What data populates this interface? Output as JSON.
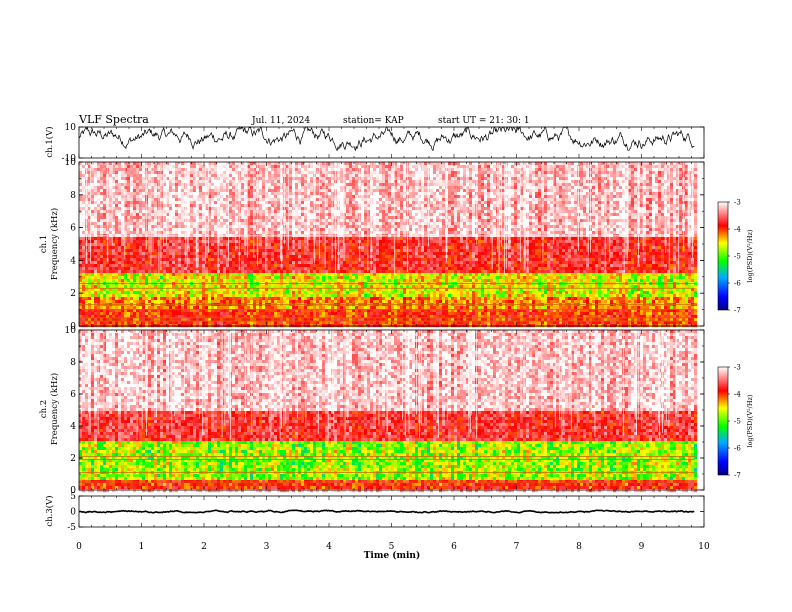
{
  "header": {
    "title": "VLF Spectra",
    "date": "Jul. 11, 2024",
    "station": "station= KAP",
    "start": "start UT = 21: 30: 1"
  },
  "colors": {
    "spectrogram_low": "#0000ff",
    "spectrogram_mid": "#00ff00",
    "spectrogram_high": "#ff0000",
    "background_noise": "#ffffff",
    "trace": "#000000"
  },
  "chart_data": [
    {
      "id": "ch1-waveform",
      "type": "line",
      "ylabel": "ch.1(V)",
      "ylim": [
        -10,
        10
      ],
      "yticks": [
        "10",
        "-10"
      ],
      "xlim": [
        0,
        9.85
      ],
      "series": [
        {
          "values_range": [
            -5,
            10
          ],
          "mean_level": 3.5
        }
      ]
    },
    {
      "id": "ch1-spectrogram",
      "type": "heatmap",
      "ylabel": "ch.1\nFrequency (kHz)",
      "ylim": [
        0,
        10
      ],
      "yticks": [
        "0",
        "2",
        "4",
        "6",
        "8",
        "10"
      ],
      "xlim": [
        0,
        9.85
      ],
      "bands": [
        {
          "fmin": 0.0,
          "fmax": 1.0,
          "level": -4.3
        },
        {
          "fmin": 1.0,
          "fmax": 1.8,
          "level": -4.6
        },
        {
          "fmin": 1.8,
          "fmax": 3.2,
          "level": -5.0
        },
        {
          "fmin": 3.2,
          "fmax": 5.5,
          "level": -4.0
        },
        {
          "fmin": 5.5,
          "fmax": 10.0,
          "level": -3.3
        }
      ],
      "narrowband_lines_khz": [
        0.3,
        0.5,
        1.0,
        1.3,
        2.3,
        2.6,
        5.5
      ],
      "colorbar": {
        "label": "log(PSD)(V²/Hz)",
        "range": [
          -7,
          -3
        ],
        "ticks": [
          "-3",
          "-4",
          "-5",
          "-6",
          "-7"
        ]
      }
    },
    {
      "id": "ch2-spectrogram",
      "type": "heatmap",
      "ylabel": "ch.2\nFrequency (kHz)",
      "ylim": [
        0,
        10
      ],
      "yticks": [
        "0",
        "2",
        "4",
        "6",
        "8",
        "10"
      ],
      "xlim": [
        0,
        9.85
      ],
      "bands": [
        {
          "fmin": 0.0,
          "fmax": 0.7,
          "level": -4.3
        },
        {
          "fmin": 0.7,
          "fmax": 3.0,
          "level": -5.2
        },
        {
          "fmin": 3.0,
          "fmax": 5.0,
          "level": -4.0
        },
        {
          "fmin": 5.0,
          "fmax": 10.0,
          "level": -3.3
        }
      ],
      "narrowband_lines_khz": [
        0.5,
        1.1,
        1.9,
        2.1
      ],
      "colorbar": {
        "label": "log(PSD)(V²/Hz)",
        "range": [
          -7,
          -3
        ],
        "ticks": [
          "-3",
          "-4",
          "-5",
          "-6",
          "-7"
        ]
      }
    },
    {
      "id": "ch3-waveform",
      "type": "line",
      "ylabel": "ch.3(V)",
      "ylim": [
        -5,
        5
      ],
      "yticks": [
        "5",
        "0",
        "-5"
      ],
      "xlim": [
        0,
        9.85
      ],
      "series": [
        {
          "values_range": [
            -0.4,
            0.4
          ],
          "mean_level": 0
        }
      ]
    }
  ],
  "xaxis": {
    "label": "Time (min)",
    "ticks": [
      "0",
      "1",
      "2",
      "3",
      "4",
      "5",
      "6",
      "7",
      "8",
      "9",
      "10"
    ],
    "xlim": [
      0,
      10
    ]
  }
}
